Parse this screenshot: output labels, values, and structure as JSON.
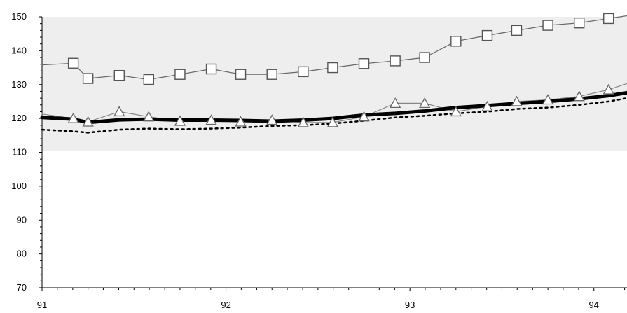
{
  "chart_data": {
    "type": "line",
    "title": "",
    "xlabel": "",
    "ylabel": "",
    "xlim": [
      91,
      94.18
    ],
    "ylim": [
      70,
      150
    ],
    "y_ticks": [
      70,
      80,
      90,
      100,
      110,
      120,
      130,
      140,
      150
    ],
    "x_ticks": [
      91,
      92,
      93,
      94
    ],
    "x_tick_labels": [
      "91",
      "92",
      "93",
      "94"
    ],
    "y_tick_labels": [
      "70",
      "80",
      "90",
      "100",
      "110",
      "120",
      "130",
      "140",
      "150"
    ],
    "grid": false,
    "legend": "none",
    "background": {
      "page": "#ffffff",
      "panel": "#eeeeee",
      "panel_ylim": [
        110.5,
        150
      ]
    },
    "series": [
      {
        "marker": "square",
        "color": "#666666",
        "line_width": "thin",
        "x": [
          91.0,
          91.17,
          91.25,
          91.42,
          91.58,
          91.75,
          91.92,
          92.08,
          92.25,
          92.42,
          92.58,
          92.75,
          92.92,
          93.08,
          93.25,
          93.42,
          93.58,
          93.75,
          93.92,
          94.08,
          94.18
        ],
        "y": [
          135.8,
          136.3,
          131.8,
          132.7,
          131.5,
          133.0,
          134.6,
          133.0,
          133.0,
          133.8,
          135.0,
          136.2,
          137.0,
          138.0,
          142.8,
          144.5,
          146.0,
          147.5,
          148.2,
          149.5,
          150.3
        ]
      },
      {
        "marker": "triangle",
        "color": "#888888",
        "line_width": "thin",
        "x": [
          91.0,
          91.17,
          91.25,
          91.42,
          91.58,
          91.75,
          91.92,
          92.08,
          92.25,
          92.42,
          92.58,
          92.75,
          92.92,
          93.08,
          93.25,
          93.42,
          93.58,
          93.75,
          93.92,
          94.08,
          94.18
        ],
        "y": [
          121.3,
          120.0,
          119.0,
          122.0,
          120.5,
          119.2,
          119.5,
          119.0,
          119.5,
          118.8,
          118.8,
          120.5,
          124.5,
          124.5,
          122.0,
          123.5,
          125.0,
          125.5,
          126.5,
          128.5,
          130.3
        ]
      },
      {
        "marker": "none",
        "color": "#000000",
        "line_width": "thick",
        "x": [
          91.0,
          91.17,
          91.25,
          91.42,
          91.58,
          91.75,
          91.92,
          92.08,
          92.25,
          92.42,
          92.58,
          92.75,
          92.92,
          93.08,
          93.25,
          93.42,
          93.58,
          93.75,
          93.92,
          94.08,
          94.18
        ],
        "y": [
          120.3,
          119.8,
          118.8,
          119.6,
          119.8,
          119.5,
          119.5,
          119.4,
          119.2,
          119.5,
          120.0,
          121.0,
          121.5,
          122.2,
          123.2,
          123.8,
          124.4,
          125.0,
          125.8,
          126.7,
          127.6
        ]
      },
      {
        "marker": "none",
        "color": "#000000",
        "line_width": "dotted",
        "x": [
          91.0,
          91.17,
          91.25,
          91.42,
          91.58,
          91.75,
          91.92,
          92.08,
          92.25,
          92.42,
          92.58,
          92.75,
          92.92,
          93.08,
          93.25,
          93.42,
          93.58,
          93.75,
          93.92,
          94.08,
          94.18
        ],
        "y": [
          116.7,
          116.2,
          115.8,
          116.7,
          117.0,
          116.8,
          117.0,
          117.3,
          117.8,
          118.0,
          118.5,
          119.3,
          120.3,
          120.8,
          121.5,
          122.0,
          122.8,
          123.2,
          124.0,
          125.0,
          126.0
        ]
      }
    ]
  }
}
